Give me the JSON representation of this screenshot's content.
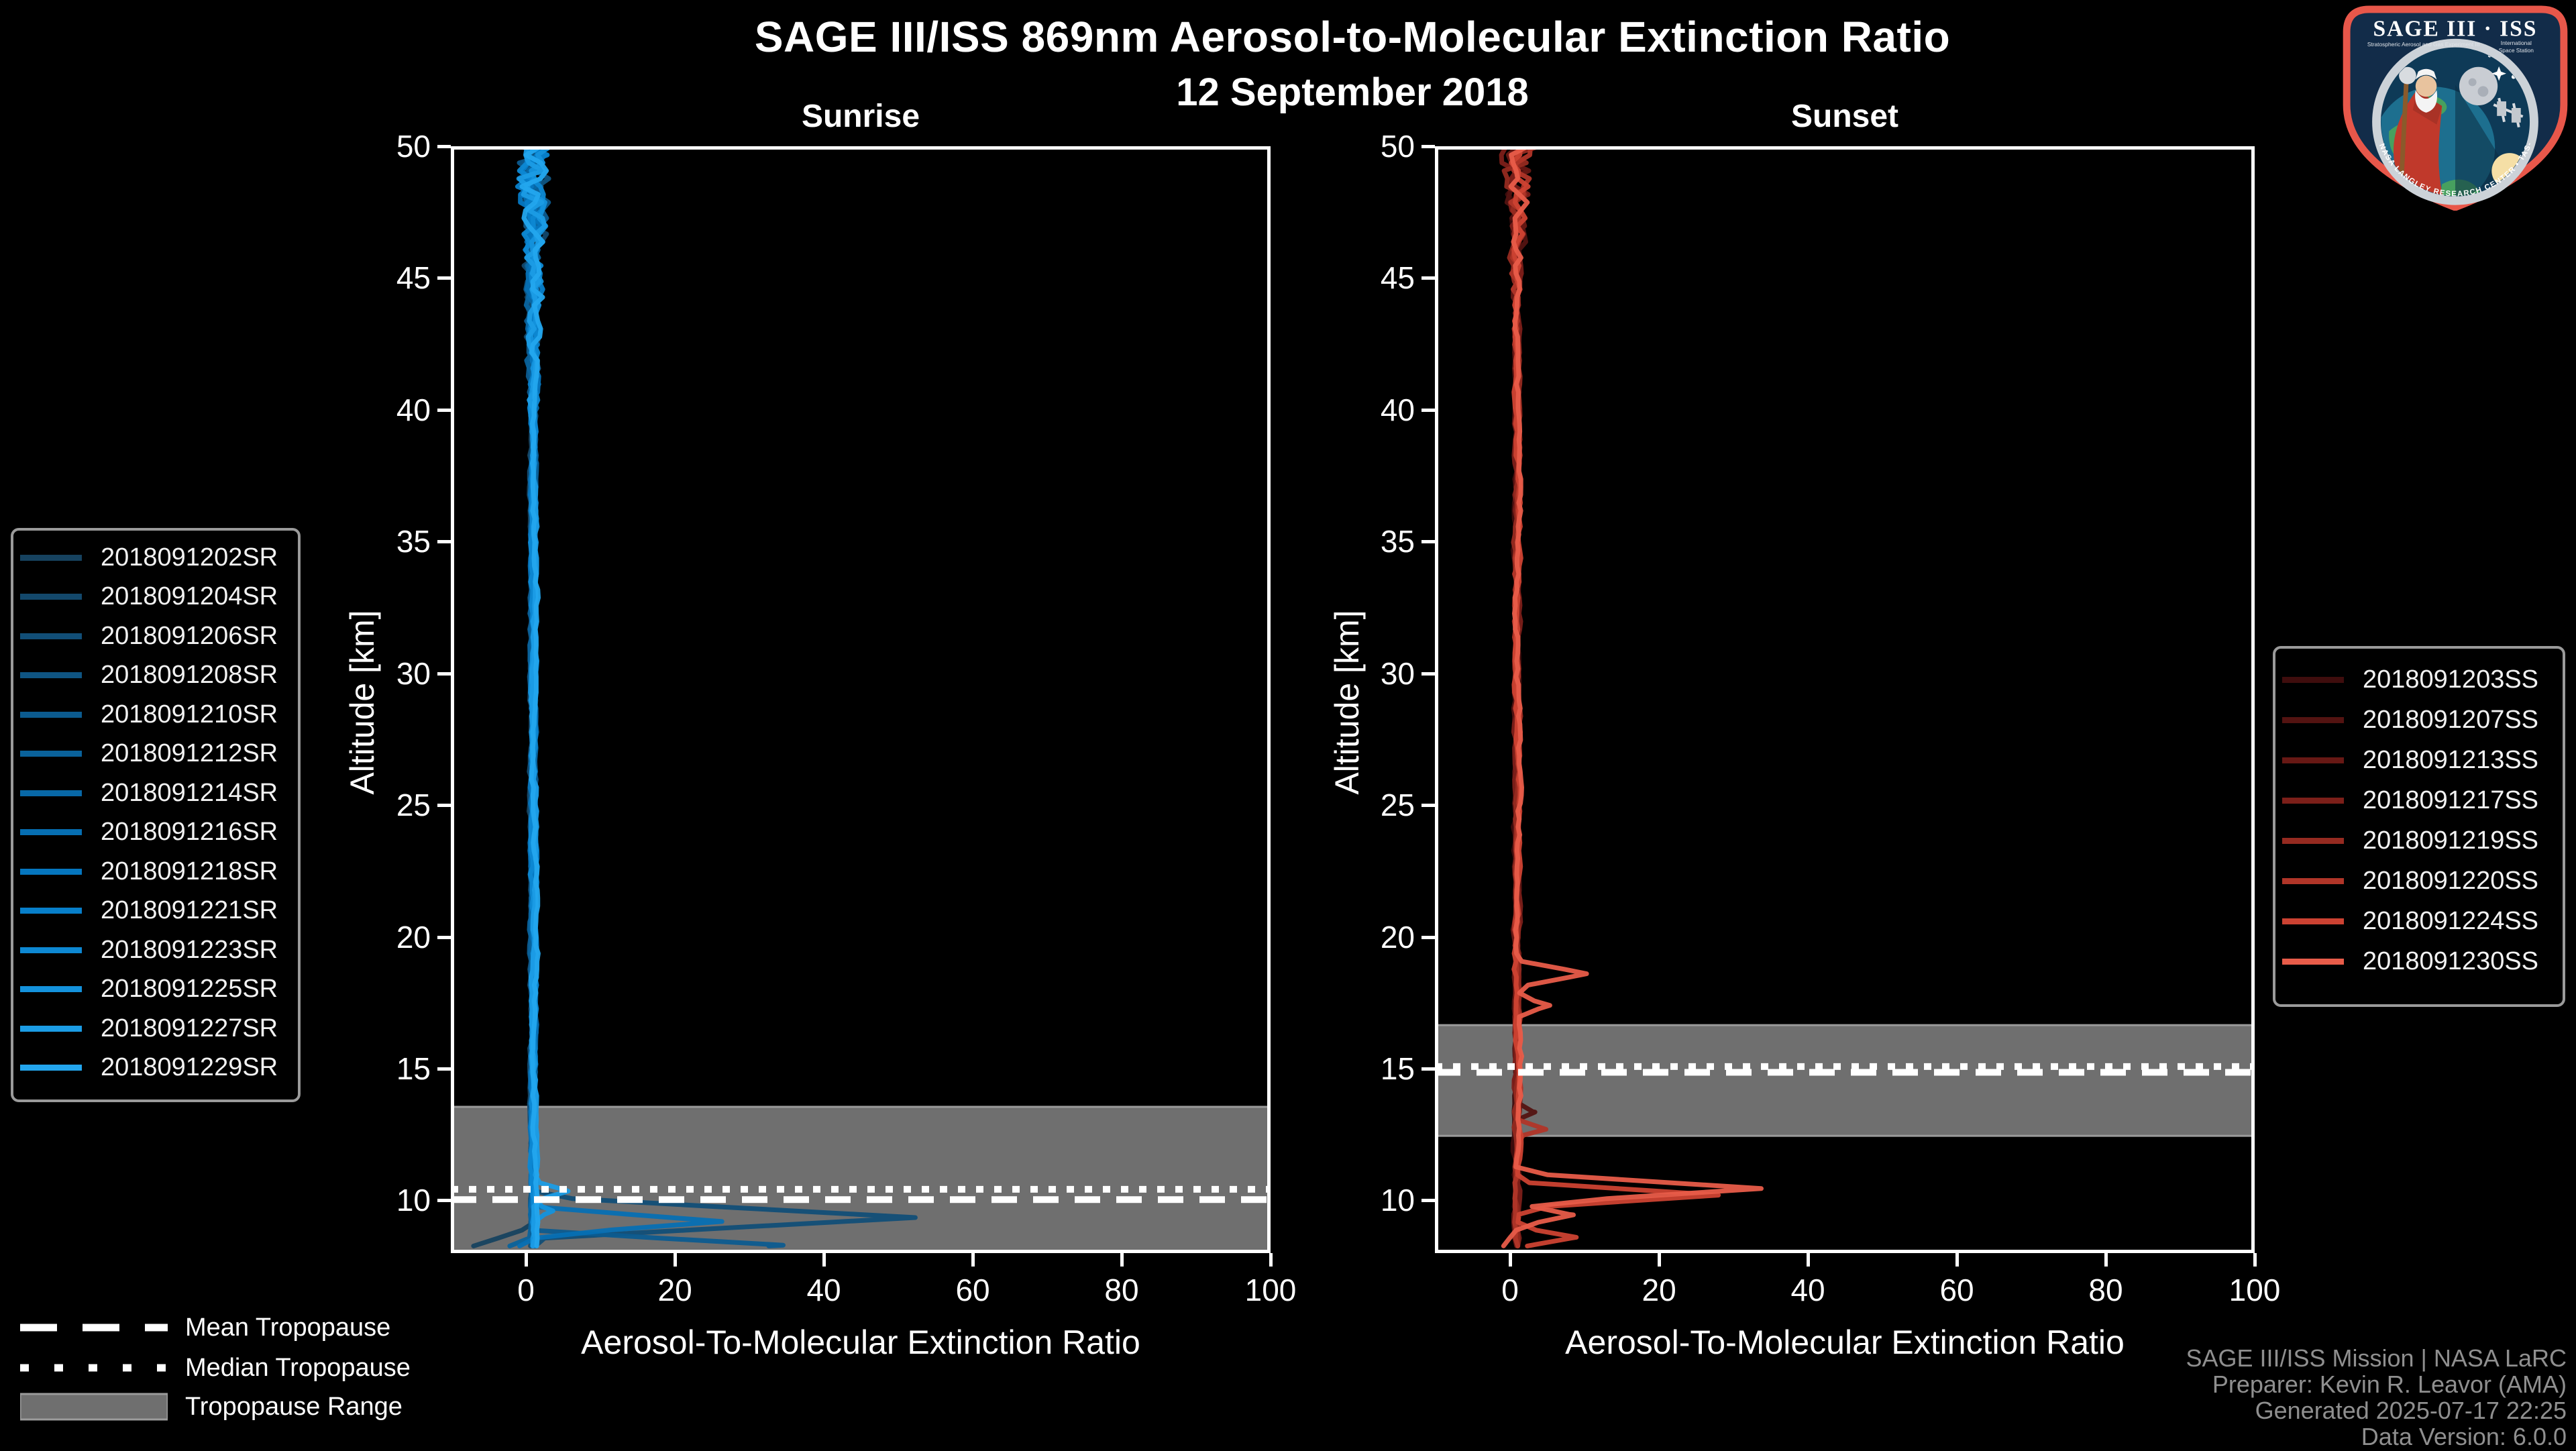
{
  "header": {
    "title": "SAGE III/ISS 869nm Aerosol-to-Molecular Extinction Ratio",
    "subtitle": "12 September 2018"
  },
  "colors": {
    "background": "#000000",
    "foreground": "#ffffff",
    "tropopause_band": "#6f6f6f",
    "tropopause_band_edge": "#9b9b9b",
    "tropopause_lines": "#ffffff",
    "legend_border": "#9a9a9a",
    "footer_text": "#8f8f8f",
    "logo_border": "#e8574a",
    "logo_field": "#122c49"
  },
  "chart_data": [
    {
      "type": "line",
      "title": "Sunrise",
      "xlabel": "Aerosol-To-Molecular Extinction Ratio",
      "ylabel": "Altitude [km]",
      "xlim": [
        -10.1,
        100
      ],
      "ylim": [
        8,
        50
      ],
      "xticks": [
        0,
        20,
        40,
        60,
        80,
        100
      ],
      "yticks": [
        10,
        15,
        20,
        25,
        30,
        35,
        40,
        45,
        50
      ],
      "grid": false,
      "legend_position": "outside-left",
      "tropopause": {
        "mean_km": 10.03,
        "median_km": 10.42,
        "range_km": [
          8.0,
          13.55
        ]
      },
      "noise_model": {
        "start": 38,
        "span": 12,
        "max": 2.3,
        "floor": 0.22
      },
      "series": [
        {
          "name": "2018091202SR",
          "color": "#16425f",
          "seed": 11,
          "base": 0.85,
          "spikes": [],
          "drift": {
            "from": 9.0,
            "to": -9.5
          }
        },
        {
          "name": "2018091204SR",
          "color": "#13486b",
          "seed": 23,
          "base": 0.9,
          "spikes": []
        },
        {
          "name": "2018091206SR",
          "color": "#114e77",
          "seed": 37,
          "base": 0.9,
          "spikes": [
            {
              "a": 9.35,
              "v": 51,
              "w": 0.8
            }
          ]
        },
        {
          "name": "2018091208SR",
          "color": "#0f5583",
          "seed": 41,
          "base": 0.95,
          "spikes": []
        },
        {
          "name": "2018091210SR",
          "color": "#0c5b8f",
          "seed": 53,
          "base": 0.9,
          "spikes": [
            {
              "a": 8.3,
              "v": 34,
              "w": 0.55
            }
          ]
        },
        {
          "name": "2018091212SR",
          "color": "#0a629b",
          "seed": 67,
          "base": 0.95,
          "spikes": [],
          "drift": {
            "from": 8.6,
            "to": -4
          }
        },
        {
          "name": "2018091214SR",
          "color": "#0868a7",
          "seed": 71,
          "base": 1.0,
          "spikes": []
        },
        {
          "name": "2018091216SR",
          "color": "#066fb3",
          "seed": 83,
          "base": 0.95,
          "spikes": [
            {
              "a": 9.2,
              "v": 25.5,
              "w": 0.55
            }
          ],
          "drift": {
            "from": 8.55,
            "to": -2.5
          }
        },
        {
          "name": "2018091218SR",
          "color": "#0576bf",
          "seed": 97,
          "base": 1.0,
          "spikes": []
        },
        {
          "name": "2018091221SR",
          "color": "#077fca",
          "seed": 103,
          "base": 1.05,
          "spikes": []
        },
        {
          "name": "2018091223SR",
          "color": "#0d88d3",
          "seed": 113,
          "base": 1.0,
          "spikes": []
        },
        {
          "name": "2018091225SR",
          "color": "#1492dc",
          "seed": 127,
          "base": 1.05,
          "spikes": [
            {
              "a": 9.6,
              "v": 2.5,
              "w": 0.3
            }
          ]
        },
        {
          "name": "2018091227SR",
          "color": "#1b9ce5",
          "seed": 131,
          "base": 1.1,
          "spikes": [
            {
              "a": 10.35,
              "v": 4.5,
              "w": 0.38
            }
          ]
        },
        {
          "name": "2018091229SR",
          "color": "#23a6ee",
          "seed": 139,
          "base": 1.2,
          "spikes": []
        }
      ]
    },
    {
      "type": "line",
      "title": "Sunset",
      "xlabel": "Aerosol-To-Molecular Extinction Ratio",
      "ylabel": "Altitude [km]",
      "xlim": [
        -10.1,
        100
      ],
      "ylim": [
        8,
        50
      ],
      "xticks": [
        0,
        20,
        40,
        60,
        80,
        100
      ],
      "yticks": [
        10,
        15,
        20,
        25,
        30,
        35,
        40,
        45,
        50
      ],
      "grid": false,
      "legend_position": "outside-right",
      "tropopause": {
        "mean_km": 14.86,
        "median_km": 15.08,
        "range_km": [
          12.45,
          16.65
        ]
      },
      "noise_model": {
        "start": 42.5,
        "span": 7.5,
        "max": 2.1,
        "floor": 0.25
      },
      "series": [
        {
          "name": "2018091203SS",
          "color": "#3f0d0d",
          "seed": 17,
          "base": 0.85,
          "spikes": []
        },
        {
          "name": "2018091207SS",
          "color": "#531311",
          "seed": 29,
          "base": 0.9,
          "spikes": [
            {
              "a": 13.35,
              "v": 2.2,
              "w": 0.3
            }
          ]
        },
        {
          "name": "2018091213SS",
          "color": "#671814",
          "seed": 43,
          "base": 0.9,
          "spikes": []
        },
        {
          "name": "2018091217SS",
          "color": "#7c1f19",
          "seed": 59,
          "base": 0.95,
          "spikes": []
        },
        {
          "name": "2018091219SS",
          "color": "#952a20",
          "seed": 73,
          "base": 0.95,
          "spikes": []
        },
        {
          "name": "2018091220SS",
          "color": "#b03528",
          "seed": 89,
          "base": 1.0,
          "spikes": [
            {
              "a": 12.7,
              "v": 3.8,
              "w": 0.3
            }
          ]
        },
        {
          "name": "2018091224SS",
          "color": "#cc4232",
          "seed": 101,
          "base": 1.0,
          "spikes": [
            {
              "a": 10.2,
              "v": 27,
              "w": 0.5
            },
            {
              "a": 8.6,
              "v": 8,
              "w": 0.4
            }
          ]
        },
        {
          "name": "2018091230SS",
          "color": "#e85c49",
          "seed": 109,
          "base": 1.1,
          "spikes": [
            {
              "a": 18.6,
              "v": 9.5,
              "w": 0.5
            },
            {
              "a": 17.4,
              "v": 4.0,
              "w": 0.35
            },
            {
              "a": 10.45,
              "v": 33,
              "w": 0.6
            },
            {
              "a": 9.45,
              "v": 7.5,
              "w": 0.45
            }
          ],
          "drift": {
            "from": 8.9,
            "to": -1.5
          }
        }
      ]
    }
  ],
  "tropo_legend": {
    "mean_label": "Mean Tropopause",
    "median_label": "Median Tropopause",
    "range_label": "Tropopause Range"
  },
  "footer": {
    "line1": "SAGE III/ISS Mission | NASA LaRC",
    "line2": "Preparer: Kevin R. Leavor (AMA)",
    "line3": "Generated 2025-07-17 22:25",
    "line4": "Data Version: 6.0.0"
  },
  "logo": {
    "title": "SAGE III · ISS",
    "subtitle_left": "Stratospheric Aerosol and Gas Experiment III",
    "subtitle_right_1": "International",
    "subtitle_right_2": "Space Station",
    "ring_text": "BALL • NASA LANGLEY RESEARCH CENTER • TAS-I • ESA"
  },
  "layout_note": "dual-panel solar occultation extinction-ratio profile plot, black theme"
}
